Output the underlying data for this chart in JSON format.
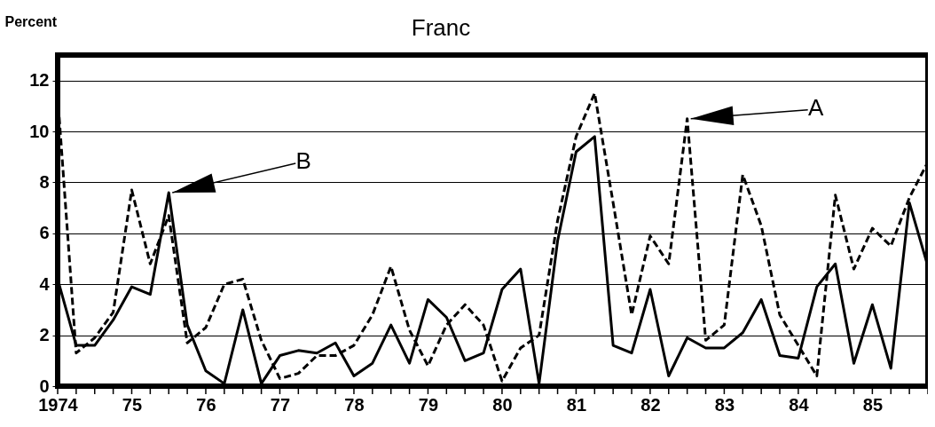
{
  "chart_data": {
    "type": "line",
    "title": "Franc",
    "ylabel": "Percent",
    "x": [
      1974,
      1974.25,
      1974.5,
      1974.75,
      1975,
      1975.25,
      1975.5,
      1975.75,
      1976,
      1976.25,
      1976.5,
      1976.75,
      1977,
      1977.25,
      1977.5,
      1977.75,
      1978,
      1978.25,
      1978.5,
      1978.75,
      1979,
      1979.25,
      1979.5,
      1979.75,
      1980,
      1980.25,
      1980.5,
      1980.75,
      1981,
      1981.25,
      1981.5,
      1981.75,
      1982,
      1982.25,
      1982.5,
      1982.75,
      1983,
      1983.25,
      1983.5,
      1983.75,
      1984,
      1984.25,
      1984.5,
      1984.75,
      1985,
      1985.25,
      1985.5,
      1985.75
    ],
    "series": [
      {
        "color": "#000000",
        "line_style": "solid",
        "values": [
          4.2,
          1.6,
          1.6,
          2.6,
          3.9,
          3.6,
          7.6,
          2.4,
          0.6,
          0.1,
          3.0,
          0.1,
          1.2,
          1.4,
          1.3,
          1.7,
          0.4,
          0.9,
          2.4,
          0.9,
          3.4,
          2.7,
          1.0,
          1.3,
          3.8,
          4.6,
          0.1,
          5.7,
          9.2,
          9.8,
          1.6,
          1.3,
          3.8,
          0.4,
          1.9,
          1.5,
          1.5,
          2.1,
          3.4,
          1.2,
          1.1,
          3.9,
          4.8,
          0.9,
          3.2,
          0.7,
          7.2,
          4.7
        ]
      },
      {
        "color": "#000000",
        "line_style": "dashed",
        "values": [
          11.4,
          1.3,
          1.9,
          2.9,
          7.7,
          4.8,
          6.7,
          1.7,
          2.3,
          4.0,
          4.2,
          1.8,
          0.3,
          0.5,
          1.2,
          1.2,
          1.6,
          2.8,
          4.7,
          2.2,
          0.8,
          2.4,
          3.2,
          2.4,
          0.2,
          1.5,
          2.0,
          6.5,
          9.8,
          11.5,
          7.2,
          2.8,
          5.9,
          4.8,
          10.5,
          1.8,
          2.4,
          8.3,
          6.3,
          2.8,
          1.6,
          0.4,
          7.5,
          4.6,
          6.2,
          5.5,
          7.4,
          8.8
        ]
      }
    ],
    "xlim": [
      1974,
      1985.75
    ],
    "xticks": [
      {
        "value": 1974,
        "label": "1974"
      },
      {
        "value": 1974.25,
        "label": null
      },
      {
        "value": 1974.5,
        "label": null
      },
      {
        "value": 1974.75,
        "label": null
      },
      {
        "value": 1975,
        "label": "75"
      },
      {
        "value": 1975.25,
        "label": null
      },
      {
        "value": 1975.5,
        "label": null
      },
      {
        "value": 1975.75,
        "label": null
      },
      {
        "value": 1976,
        "label": "76"
      },
      {
        "value": 1976.25,
        "label": null
      },
      {
        "value": 1976.5,
        "label": null
      },
      {
        "value": 1976.75,
        "label": null
      },
      {
        "value": 1977,
        "label": "77"
      },
      {
        "value": 1977.25,
        "label": null
      },
      {
        "value": 1977.5,
        "label": null
      },
      {
        "value": 1977.75,
        "label": null
      },
      {
        "value": 1978,
        "label": "78"
      },
      {
        "value": 1978.25,
        "label": null
      },
      {
        "value": 1978.5,
        "label": null
      },
      {
        "value": 1978.75,
        "label": null
      },
      {
        "value": 1979,
        "label": "79"
      },
      {
        "value": 1979.25,
        "label": null
      },
      {
        "value": 1979.5,
        "label": null
      },
      {
        "value": 1979.75,
        "label": null
      },
      {
        "value": 1980,
        "label": "80"
      },
      {
        "value": 1980.25,
        "label": null
      },
      {
        "value": 1980.5,
        "label": null
      },
      {
        "value": 1980.75,
        "label": null
      },
      {
        "value": 1981,
        "label": "81"
      },
      {
        "value": 1981.25,
        "label": null
      },
      {
        "value": 1981.5,
        "label": null
      },
      {
        "value": 1981.75,
        "label": null
      },
      {
        "value": 1982,
        "label": "82"
      },
      {
        "value": 1982.25,
        "label": null
      },
      {
        "value": 1982.5,
        "label": null
      },
      {
        "value": 1982.75,
        "label": null
      },
      {
        "value": 1983,
        "label": "83"
      },
      {
        "value": 1983.25,
        "label": null
      },
      {
        "value": 1983.5,
        "label": null
      },
      {
        "value": 1983.75,
        "label": null
      },
      {
        "value": 1984,
        "label": "84"
      },
      {
        "value": 1984.25,
        "label": null
      },
      {
        "value": 1984.5,
        "label": null
      },
      {
        "value": 1984.75,
        "label": null
      },
      {
        "value": 1985,
        "label": "85"
      },
      {
        "value": 1985.25,
        "label": null
      },
      {
        "value": 1985.5,
        "label": null
      },
      {
        "value": 1985.75,
        "label": null
      }
    ],
    "ylim": [
      0,
      13
    ],
    "yticks": [
      0,
      2,
      4,
      6,
      8,
      10,
      12
    ],
    "grid": "y",
    "marker": "none",
    "annotations": [
      {
        "text": "A",
        "x": 1982.5,
        "y": 10.5
      },
      {
        "text": "B",
        "x": 1975.5,
        "y": 7.6
      }
    ]
  }
}
